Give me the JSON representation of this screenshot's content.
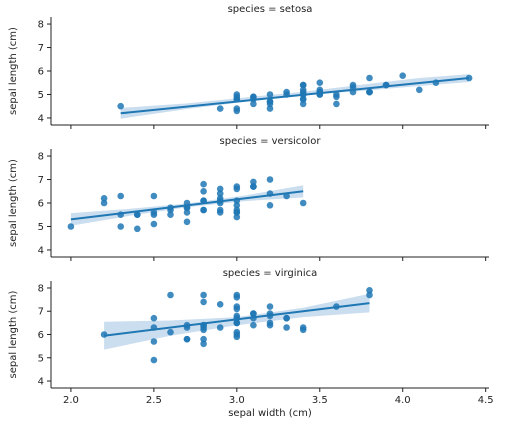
{
  "chart_data": {
    "type": "scatter",
    "xlabel": "sepal width (cm)",
    "xlim": [
      1.88,
      4.52
    ],
    "x_ticks": [
      "2.0",
      "2.5",
      "3.0",
      "3.5",
      "4.0",
      "4.5"
    ],
    "x_tick_values": [
      2.0,
      2.5,
      3.0,
      3.5,
      4.0,
      4.5
    ],
    "ylabel": "sepal length (cm)",
    "ylim": [
      3.7,
      8.3
    ],
    "y_ticks": [
      "4",
      "5",
      "6",
      "7",
      "8"
    ],
    "y_tick_values": [
      4,
      5,
      6,
      7,
      8
    ],
    "colors": {
      "points": "#1f77b4",
      "line": "#1f77b4",
      "band": "#a8c8e4"
    },
    "panels": [
      {
        "title": "species = setosa",
        "points": [
          [
            3.5,
            5.1
          ],
          [
            3.0,
            4.9
          ],
          [
            3.2,
            4.7
          ],
          [
            3.1,
            4.6
          ],
          [
            3.6,
            5.0
          ],
          [
            3.9,
            5.4
          ],
          [
            3.4,
            4.6
          ],
          [
            3.4,
            5.0
          ],
          [
            2.9,
            4.4
          ],
          [
            3.1,
            4.9
          ],
          [
            3.7,
            5.4
          ],
          [
            3.4,
            4.8
          ],
          [
            3.0,
            4.8
          ],
          [
            3.0,
            4.3
          ],
          [
            4.0,
            5.8
          ],
          [
            4.4,
            5.7
          ],
          [
            3.9,
            5.4
          ],
          [
            3.5,
            5.1
          ],
          [
            3.8,
            5.7
          ],
          [
            3.8,
            5.1
          ],
          [
            3.4,
            5.4
          ],
          [
            3.7,
            5.1
          ],
          [
            3.6,
            4.6
          ],
          [
            3.3,
            5.1
          ],
          [
            3.4,
            4.8
          ],
          [
            3.0,
            5.0
          ],
          [
            3.4,
            5.0
          ],
          [
            3.5,
            5.2
          ],
          [
            3.4,
            5.2
          ],
          [
            3.2,
            4.7
          ],
          [
            3.1,
            4.8
          ],
          [
            3.4,
            5.4
          ],
          [
            4.1,
            5.2
          ],
          [
            4.2,
            5.5
          ],
          [
            3.1,
            4.9
          ],
          [
            3.2,
            5.0
          ],
          [
            3.5,
            5.5
          ],
          [
            3.6,
            4.9
          ],
          [
            3.0,
            4.4
          ],
          [
            3.4,
            5.1
          ],
          [
            3.5,
            5.0
          ],
          [
            2.3,
            4.5
          ],
          [
            3.2,
            4.4
          ],
          [
            3.5,
            5.0
          ],
          [
            3.8,
            5.1
          ],
          [
            3.0,
            4.8
          ],
          [
            3.8,
            5.1
          ],
          [
            3.2,
            4.6
          ],
          [
            3.7,
            5.3
          ],
          [
            3.3,
            5.0
          ]
        ],
        "fit": {
          "x": [
            2.3,
            4.4
          ],
          "y": [
            4.2,
            5.7
          ]
        },
        "band": {
          "x": [
            2.3,
            2.7,
            3.1,
            3.4,
            3.8,
            4.1,
            4.4
          ],
          "upper": [
            4.43,
            4.62,
            4.91,
            5.12,
            5.46,
            5.7,
            5.87
          ],
          "lower": [
            3.97,
            4.38,
            4.73,
            4.96,
            5.18,
            5.36,
            5.53
          ]
        }
      },
      {
        "title": "species = versicolor",
        "points": [
          [
            3.2,
            7.0
          ],
          [
            3.2,
            6.4
          ],
          [
            3.1,
            6.9
          ],
          [
            2.3,
            5.5
          ],
          [
            2.8,
            6.5
          ],
          [
            2.8,
            5.7
          ],
          [
            3.3,
            6.3
          ],
          [
            2.4,
            4.9
          ],
          [
            2.9,
            6.6
          ],
          [
            2.7,
            5.2
          ],
          [
            2.0,
            5.0
          ],
          [
            3.0,
            5.9
          ],
          [
            2.2,
            6.0
          ],
          [
            2.9,
            6.1
          ],
          [
            2.9,
            5.6
          ],
          [
            3.1,
            6.7
          ],
          [
            3.0,
            5.6
          ],
          [
            2.7,
            5.8
          ],
          [
            2.2,
            6.2
          ],
          [
            2.5,
            5.6
          ],
          [
            3.2,
            5.9
          ],
          [
            2.8,
            6.1
          ],
          [
            2.5,
            6.3
          ],
          [
            2.8,
            6.1
          ],
          [
            2.9,
            6.4
          ],
          [
            3.0,
            6.6
          ],
          [
            2.8,
            6.8
          ],
          [
            3.0,
            6.7
          ],
          [
            2.9,
            6.0
          ],
          [
            2.6,
            5.7
          ],
          [
            2.4,
            5.5
          ],
          [
            2.4,
            5.5
          ],
          [
            2.7,
            5.8
          ],
          [
            2.7,
            6.0
          ],
          [
            3.0,
            5.4
          ],
          [
            3.4,
            6.0
          ],
          [
            3.1,
            6.7
          ],
          [
            2.3,
            6.3
          ],
          [
            3.0,
            5.6
          ],
          [
            2.5,
            5.5
          ],
          [
            2.6,
            5.5
          ],
          [
            3.0,
            6.1
          ],
          [
            2.6,
            5.8
          ],
          [
            2.3,
            5.0
          ],
          [
            2.7,
            5.6
          ],
          [
            3.0,
            5.7
          ],
          [
            2.9,
            5.7
          ],
          [
            2.9,
            6.2
          ],
          [
            2.5,
            5.1
          ],
          [
            2.8,
            5.7
          ]
        ],
        "fit": {
          "x": [
            2.0,
            3.4
          ],
          "y": [
            5.3,
            6.5
          ]
        },
        "band": {
          "x": [
            2.0,
            2.35,
            2.7,
            3.05,
            3.4
          ],
          "upper": [
            5.57,
            5.75,
            5.98,
            6.32,
            6.76
          ],
          "lower": [
            5.03,
            5.45,
            5.82,
            6.08,
            6.24
          ]
        }
      },
      {
        "title": "species = virginica",
        "points": [
          [
            3.3,
            6.3
          ],
          [
            2.7,
            5.8
          ],
          [
            3.0,
            7.1
          ],
          [
            2.9,
            6.3
          ],
          [
            3.0,
            6.5
          ],
          [
            3.0,
            7.6
          ],
          [
            2.5,
            4.9
          ],
          [
            2.9,
            7.3
          ],
          [
            2.5,
            6.7
          ],
          [
            3.6,
            7.2
          ],
          [
            3.2,
            6.5
          ],
          [
            2.7,
            6.4
          ],
          [
            3.0,
            6.8
          ],
          [
            2.5,
            5.7
          ],
          [
            2.8,
            5.8
          ],
          [
            3.2,
            6.4
          ],
          [
            3.0,
            6.5
          ],
          [
            3.8,
            7.7
          ],
          [
            2.6,
            7.7
          ],
          [
            2.2,
            6.0
          ],
          [
            3.2,
            6.9
          ],
          [
            2.8,
            5.6
          ],
          [
            2.8,
            7.7
          ],
          [
            2.7,
            6.3
          ],
          [
            3.3,
            6.7
          ],
          [
            3.2,
            7.2
          ],
          [
            2.8,
            6.2
          ],
          [
            3.0,
            6.1
          ],
          [
            2.8,
            6.4
          ],
          [
            3.0,
            7.2
          ],
          [
            2.8,
            7.4
          ],
          [
            3.8,
            7.9
          ],
          [
            2.8,
            6.4
          ],
          [
            2.8,
            6.3
          ],
          [
            2.6,
            6.1
          ],
          [
            3.0,
            7.7
          ],
          [
            3.4,
            6.3
          ],
          [
            3.1,
            6.4
          ],
          [
            3.0,
            6.0
          ],
          [
            3.1,
            6.9
          ],
          [
            3.1,
            6.7
          ],
          [
            3.1,
            6.9
          ],
          [
            2.7,
            5.8
          ],
          [
            3.2,
            6.8
          ],
          [
            3.3,
            6.7
          ],
          [
            3.0,
            6.7
          ],
          [
            2.5,
            6.3
          ],
          [
            3.0,
            6.5
          ],
          [
            3.4,
            6.2
          ],
          [
            3.0,
            5.9
          ]
        ],
        "fit": {
          "x": [
            2.2,
            3.8
          ],
          "y": [
            5.95,
            7.35
          ]
        },
        "band": {
          "x": [
            2.2,
            2.6,
            3.0,
            3.4,
            3.8
          ],
          "upper": [
            6.55,
            6.6,
            6.75,
            7.15,
            7.75
          ],
          "lower": [
            5.35,
            5.95,
            6.4,
            6.75,
            6.95
          ]
        }
      }
    ]
  }
}
